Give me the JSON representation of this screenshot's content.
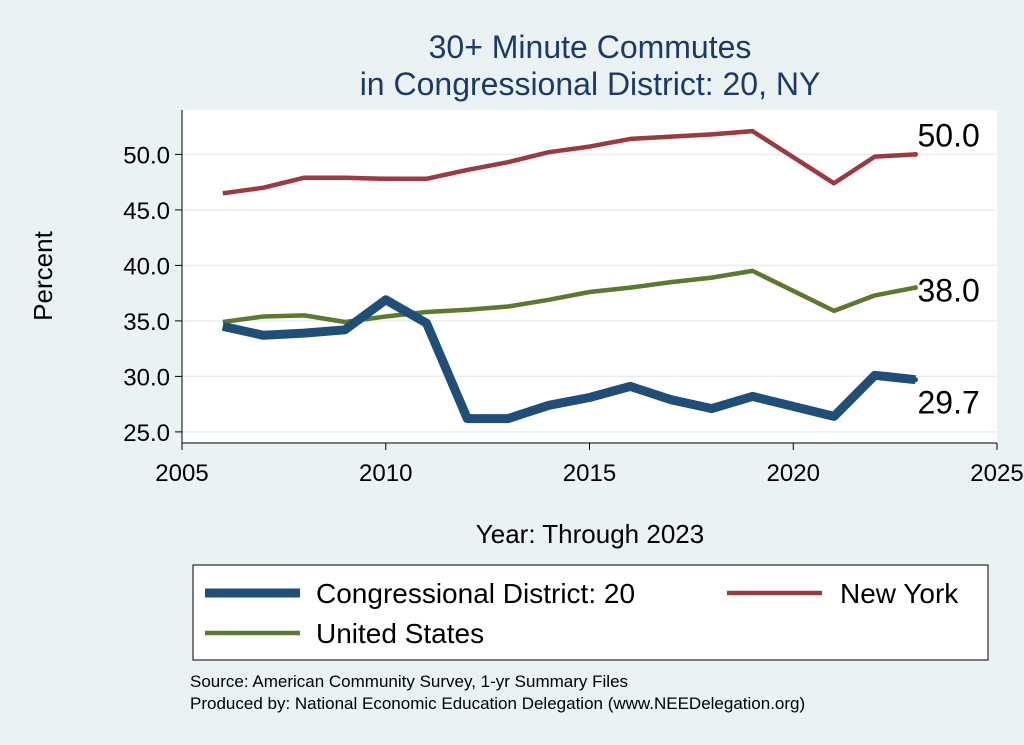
{
  "chart_data": {
    "type": "line",
    "title": [
      "30+ Minute Commutes",
      "in Congressional District:  20, NY"
    ],
    "xlabel": "Year: Through 2023",
    "ylabel": "Percent",
    "xlim": [
      2005,
      2025
    ],
    "ylim": [
      24,
      54
    ],
    "x_ticks": [
      2005,
      2010,
      2015,
      2020,
      2025
    ],
    "x_tick_labels": [
      "2005",
      "2010",
      "2015",
      "2020",
      "2025"
    ],
    "y_ticks": [
      25,
      30,
      35,
      40,
      45,
      50
    ],
    "y_tick_labels": [
      "25.0",
      "30.0",
      "35.0",
      "40.0",
      "45.0",
      "50.0"
    ],
    "x": [
      2006,
      2007,
      2008,
      2009,
      2010,
      2011,
      2012,
      2013,
      2014,
      2015,
      2016,
      2017,
      2018,
      2019,
      2021,
      2022,
      2023
    ],
    "series": [
      {
        "name": "Congressional District:  20",
        "color": "#1f4e79",
        "width": 9,
        "values": [
          34.5,
          33.7,
          33.9,
          34.2,
          36.9,
          34.8,
          26.2,
          26.2,
          27.4,
          28.1,
          29.1,
          27.9,
          27.1,
          28.2,
          26.4,
          30.1,
          29.7
        ],
        "end_label": "29.7"
      },
      {
        "name": "New York",
        "color": "#9b3a3f",
        "width": 4.5,
        "values": [
          46.5,
          47.0,
          47.9,
          47.9,
          47.8,
          47.8,
          48.6,
          49.3,
          50.2,
          50.7,
          51.4,
          51.6,
          51.8,
          52.1,
          47.4,
          49.8,
          50.0
        ],
        "end_label": "50.0"
      },
      {
        "name": "United States",
        "color": "#5a7a2e",
        "width": 4.5,
        "values": [
          34.9,
          35.4,
          35.5,
          34.9,
          35.4,
          35.8,
          36.0,
          36.3,
          36.9,
          37.6,
          38.0,
          38.5,
          38.9,
          39.5,
          35.9,
          37.3,
          38.0
        ],
        "end_label": "38.0"
      }
    ],
    "legend": [
      {
        "label": "Congressional District:  20",
        "series": 0
      },
      {
        "label": "New York",
        "series": 1
      },
      {
        "label": "United States",
        "series": 2
      }
    ],
    "grid": true,
    "legend_position": "bottom"
  },
  "source_lines": [
    "Source: American Community Survey, 1-yr Summary Files",
    "Produced by: National Economic Education Delegation (www.NEEDelegation.org)"
  ]
}
